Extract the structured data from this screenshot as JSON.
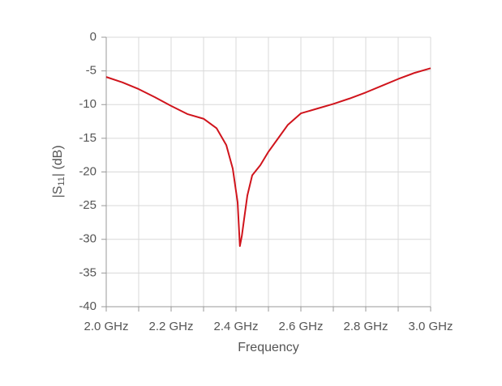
{
  "chart_data": {
    "type": "line",
    "xlabel": "Frequency",
    "ylabel_parts": [
      "|S",
      "11",
      "| (dB)"
    ],
    "x": [
      2.0,
      2.05,
      2.1,
      2.15,
      2.2,
      2.25,
      2.3,
      2.34,
      2.37,
      2.39,
      2.405,
      2.412,
      2.418,
      2.425,
      2.435,
      2.45,
      2.475,
      2.5,
      2.53,
      2.56,
      2.6,
      2.65,
      2.7,
      2.75,
      2.8,
      2.85,
      2.9,
      2.95,
      3.0
    ],
    "series": [
      {
        "color": "#d0141c",
        "values": [
          -5.9,
          -6.7,
          -7.7,
          -8.9,
          -10.2,
          -11.4,
          -12.1,
          -13.5,
          -16,
          -19.5,
          -24.5,
          -31,
          -29.5,
          -27,
          -23.5,
          -20.5,
          -19,
          -17,
          -15,
          -13,
          -11.3,
          -10.6,
          -9.9,
          -9.1,
          -8.2,
          -7.2,
          -6.2,
          -5.3,
          -4.6
        ]
      }
    ],
    "xlim": [
      2.0,
      3.0
    ],
    "xticks": [
      {
        "value": 2.0,
        "label": "2.0 GHz"
      },
      {
        "value": 2.2,
        "label": "2.2 GHz"
      },
      {
        "value": 2.4,
        "label": "2.4 GHz"
      },
      {
        "value": 2.6,
        "label": "2.6 GHz"
      },
      {
        "value": 2.8,
        "label": "2.8 GHz"
      },
      {
        "value": 3.0,
        "label": "3.0 GHz"
      }
    ],
    "xminorticks": [
      2.1,
      2.3,
      2.5,
      2.7,
      2.9
    ],
    "ylim": [
      -40,
      0
    ],
    "yticks": [
      0,
      -5,
      -10,
      -15,
      -20,
      -25,
      -30,
      -35,
      -40
    ],
    "grid": true
  }
}
